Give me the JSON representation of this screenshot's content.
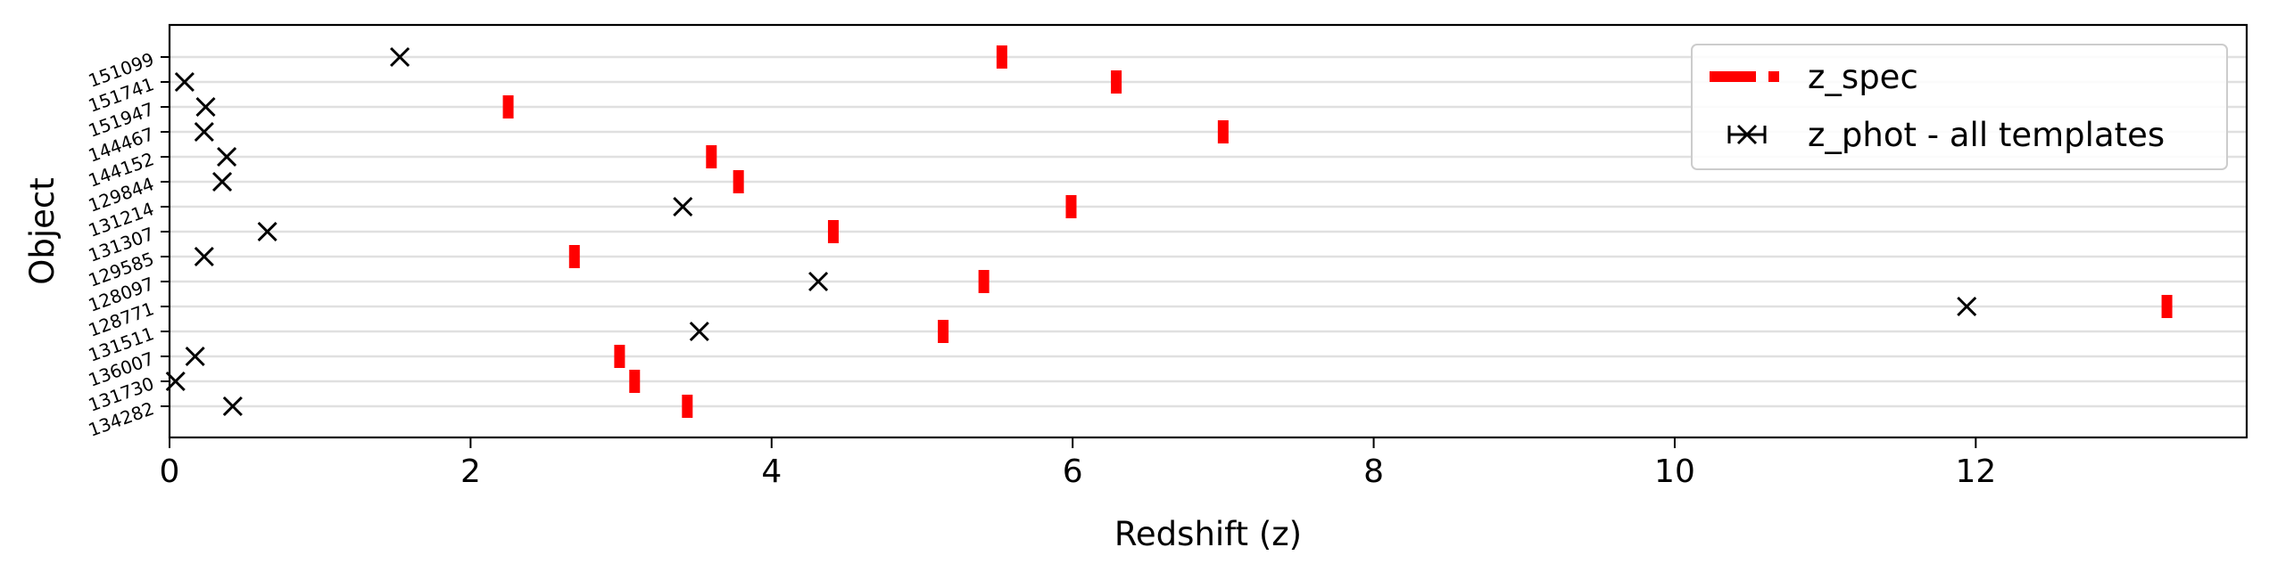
{
  "chart_data": {
    "type": "scatter",
    "title": "",
    "xlabel": "Redshift (z)",
    "ylabel": "Object",
    "xlim": [
      0,
      13.8
    ],
    "xticks": [
      0,
      2,
      4,
      6,
      8,
      10,
      12
    ],
    "grid": "horizontal",
    "legend_position": "top-right",
    "categories": [
      "151099",
      "151741",
      "151947",
      "144467",
      "144152",
      "129844",
      "131214",
      "131307",
      "129585",
      "128097",
      "128771",
      "131511",
      "136007",
      "131730",
      "134282"
    ],
    "series": [
      {
        "name": "z_spec",
        "marker": "red-vertical-bar",
        "color": "#ff0000",
        "values": [
          5.53,
          6.29,
          2.25,
          7.0,
          3.6,
          3.78,
          5.99,
          4.41,
          2.69,
          5.41,
          13.27,
          5.14,
          2.99,
          3.09,
          3.44
        ]
      },
      {
        "name": "z_phot - all templates",
        "marker": "black-x",
        "color": "#000000",
        "values": [
          1.53,
          0.1,
          0.24,
          0.23,
          0.38,
          0.35,
          3.41,
          0.65,
          0.23,
          4.31,
          11.94,
          3.52,
          0.17,
          0.04,
          0.42
        ]
      }
    ]
  }
}
